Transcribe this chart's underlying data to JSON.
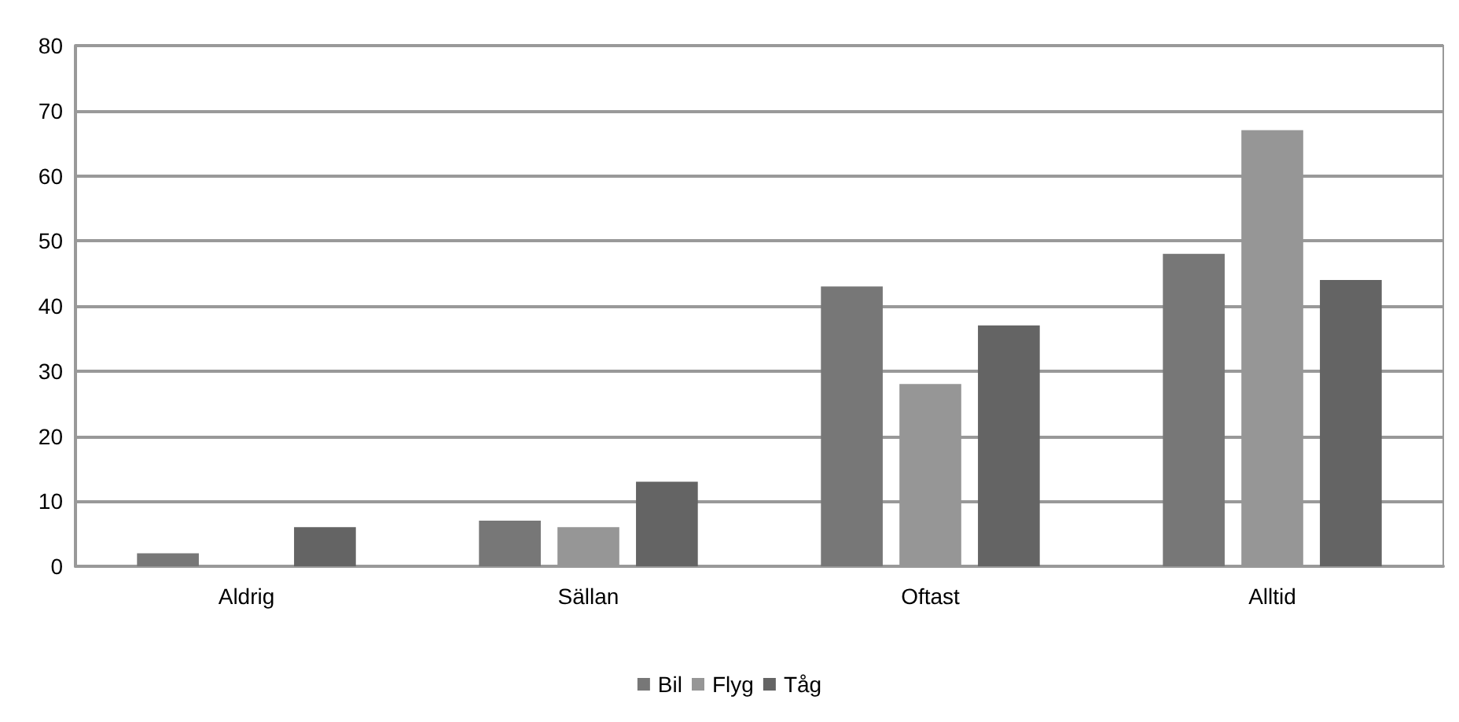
{
  "chart_data": {
    "type": "bar",
    "categories": [
      "Aldrig",
      "Sällan",
      "Oftast",
      "Alltid"
    ],
    "series": [
      {
        "name": "Bil",
        "color": "#777777",
        "values": [
          2,
          7,
          43,
          48
        ]
      },
      {
        "name": "Flyg",
        "color": "#969696",
        "values": [
          0,
          6,
          28,
          67
        ]
      },
      {
        "name": "Tåg",
        "color": "#646464",
        "values": [
          6,
          13,
          37,
          44
        ]
      }
    ],
    "ylim": [
      0,
      80
    ],
    "yticks": [
      0,
      10,
      20,
      30,
      40,
      50,
      60,
      70,
      80
    ],
    "grid": "y",
    "legend": "bottom"
  }
}
